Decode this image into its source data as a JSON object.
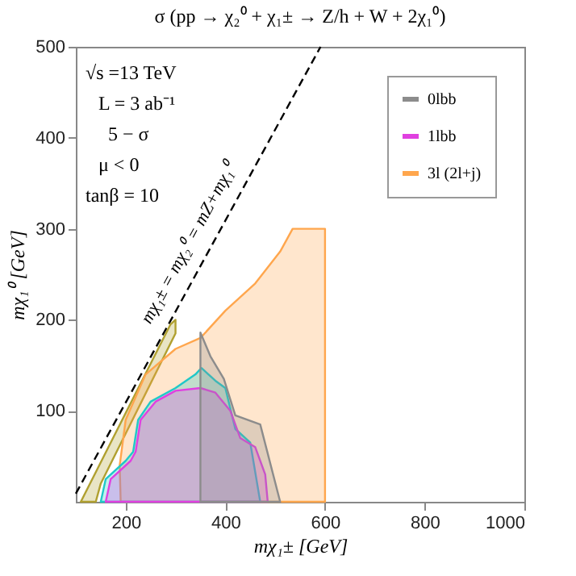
{
  "chart_data": {
    "type": "area",
    "title": "σ (pp → χ₂⁰ + χ₁± → Z/h + W + 2χ₁⁰)",
    "xlabel": "mχ₁± [GeV]",
    "ylabel": "mχ₁⁰ [GeV]",
    "xlim": [
      100,
      1000
    ],
    "xticks": [
      200,
      400,
      600,
      800,
      1000
    ],
    "ylim": [
      0,
      500
    ],
    "yticks": [
      100,
      200,
      300,
      400,
      500
    ],
    "legend": "top right",
    "grid": false,
    "annotations": [
      "√s =13 TeV",
      "L = 3 ab⁻¹",
      "5 − σ",
      "μ < 0",
      "tanβ = 10",
      "mχ₁± = mχ₂⁰ = mZ+mχ₁⁰"
    ],
    "series": [
      {
        "name": "0lbb",
        "color": "#8c8c8c",
        "x": [
          350,
          350,
          370,
          397,
          420,
          470,
          510,
          350
        ],
        "values": [
          0,
          186,
          160,
          135,
          95,
          85,
          0,
          0
        ]
      },
      {
        "name": "1lbb",
        "color": "#e040e0",
        "x": [
          160,
          170,
          210,
          220,
          230,
          260,
          300,
          350,
          380,
          410,
          430,
          460,
          480,
          485,
          160
        ],
        "values": [
          0,
          25,
          45,
          55,
          90,
          110,
          122,
          125,
          120,
          100,
          70,
          60,
          30,
          0,
          0
        ]
      },
      {
        "color": "#20c8c8",
        "x": [
          150,
          160,
          200,
          215,
          225,
          250,
          300,
          340,
          352,
          380,
          400,
          420,
          450,
          470,
          150
        ],
        "values": [
          0,
          25,
          45,
          55,
          90,
          110,
          125,
          140,
          147,
          133,
          125,
          80,
          65,
          0,
          0
        ]
      },
      {
        "name": "3l (2l+j)",
        "color": "#ffa64d",
        "x": [
          190,
          188,
          200,
          240,
          300,
          350,
          400,
          460,
          510,
          535,
          600,
          600,
          190
        ],
        "values": [
          0,
          40,
          90,
          140,
          168,
          180,
          210,
          240,
          275,
          300,
          300,
          0,
          0
        ]
      },
      {
        "color": "#b0a030",
        "x": [
          110,
          290,
          300,
          300,
          150,
          140,
          110
        ],
        "values": [
          0,
          195,
          200,
          185,
          20,
          0,
          0
        ]
      },
      {
        "type": "line",
        "color": "#000000",
        "line_style": "dashed",
        "x": [
          100,
          591
        ],
        "values": [
          9,
          500
        ]
      }
    ]
  }
}
